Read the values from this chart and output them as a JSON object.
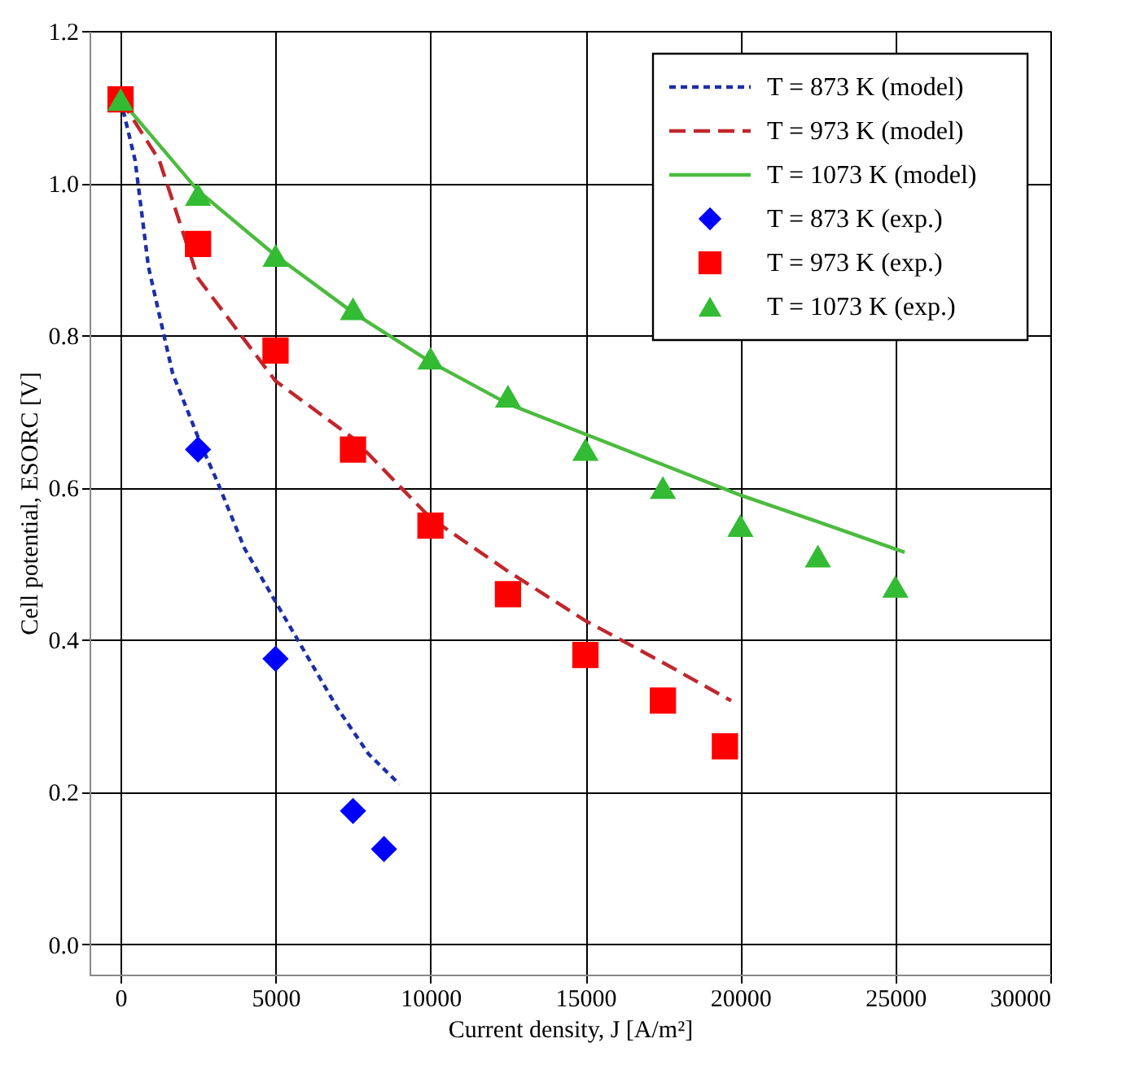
{
  "chart_data": {
    "type": "line",
    "xlabel": "Current density, J [A/m²]",
    "ylabel": "Cell potential, ESORC [V]",
    "xlim": [
      -1000,
      30000
    ],
    "xticks": [
      0,
      5000,
      10000,
      15000,
      20000,
      25000,
      30000
    ],
    "ylim": [
      -0.04,
      1.2
    ],
    "yticks": [
      {
        "value": 0,
        "label": "0.0"
      },
      0.2,
      0.4,
      0.6,
      0.8,
      {
        "value": 1,
        "label": "1.0"
      },
      1.2
    ],
    "grid": true,
    "legend": "top right",
    "series": [
      {
        "name": "T = 873 K (model)",
        "line_style": "dotted",
        "color": "#1c2fa6",
        "x": [
          0,
          470,
          900,
          1680,
          2660,
          3100,
          4000,
          5000,
          6000,
          7000,
          8000,
          9000
        ],
        "values": [
          1.11,
          1.03,
          0.89,
          0.75,
          0.65,
          0.61,
          0.52,
          0.45,
          0.38,
          0.31,
          0.25,
          0.21
        ]
      },
      {
        "name": "T = 973 K (model)",
        "line_style": "dashed",
        "color": "#c0272d",
        "x": [
          0,
          1250,
          2500,
          5000,
          7500,
          10000,
          12500,
          15000,
          17500,
          19700
        ],
        "values": [
          1.11,
          1.03,
          0.875,
          0.74,
          0.665,
          0.56,
          0.49,
          0.425,
          0.37,
          0.32
        ]
      },
      {
        "name": "T = 1073 K (model)",
        "line_style": "solid",
        "color": "#4cbb3f",
        "x": [
          0,
          2500,
          5000,
          7500,
          10000,
          12500,
          15000,
          17500,
          20000,
          22500,
          25300
        ],
        "values": [
          1.11,
          0.99,
          0.905,
          0.83,
          0.765,
          0.71,
          0.67,
          0.63,
          0.59,
          0.555,
          0.515
        ]
      },
      {
        "name": "T = 873 K (exp.)",
        "type": "scatter",
        "marker": "diamond",
        "color": "#0000ff",
        "x": [
          2500,
          5000,
          7500,
          8500
        ],
        "values": [
          0.65,
          0.375,
          0.175,
          0.125
        ]
      },
      {
        "name": "T = 973 K (exp.)",
        "type": "scatter",
        "marker": "square",
        "color": "#ff0000",
        "x": [
          0,
          2500,
          5000,
          7500,
          10000,
          12500,
          15000,
          17500,
          19500
        ],
        "values": [
          1.11,
          0.92,
          0.78,
          0.65,
          0.55,
          0.46,
          0.38,
          0.32,
          0.26
        ]
      },
      {
        "name": "T = 1073 K (exp.)",
        "type": "scatter",
        "marker": "triangle",
        "color": "#33bb33",
        "x": [
          0,
          2500,
          5000,
          7500,
          10000,
          12500,
          15000,
          17500,
          20000,
          22500,
          25000
        ],
        "values": [
          1.11,
          0.985,
          0.905,
          0.835,
          0.77,
          0.72,
          0.65,
          0.6,
          0.55,
          0.51,
          0.47
        ]
      }
    ]
  }
}
